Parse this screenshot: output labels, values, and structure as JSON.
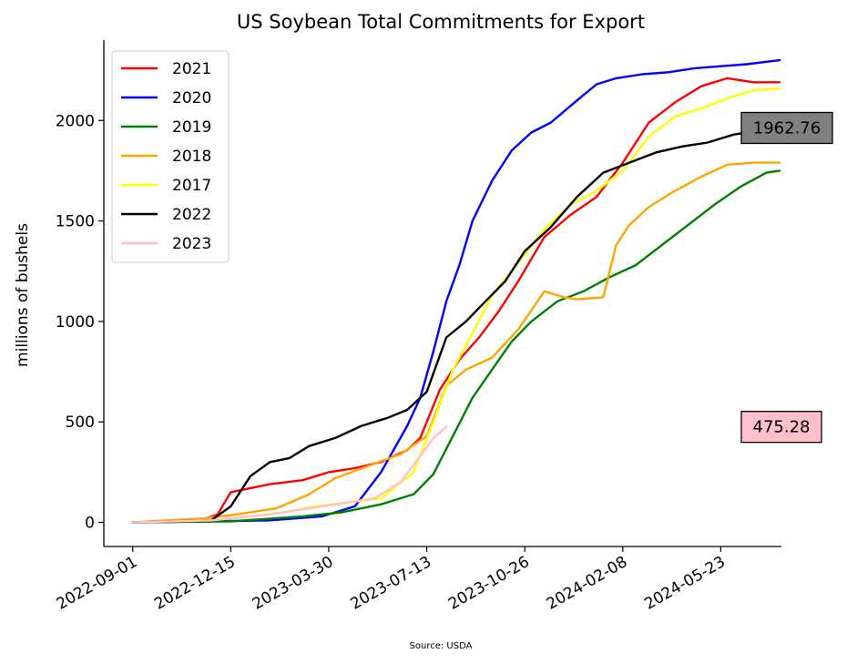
{
  "chart_data": {
    "type": "line",
    "title": "US Soybean Total Commitments for Export",
    "xlabel": "",
    "ylabel": "millions of bushels",
    "source": "Source: USDA",
    "x_axis": {
      "type": "date",
      "range": [
        "2022-08-01",
        "2024-07-27"
      ],
      "ticks": [
        "2022-09-01",
        "2022-12-15",
        "2023-03-30",
        "2023-07-13",
        "2023-10-26",
        "2024-02-08",
        "2024-05-23"
      ]
    },
    "y_axis": {
      "range": [
        -120,
        2400
      ],
      "ticks": [
        "0",
        "500",
        "1000",
        "1500",
        "2000"
      ]
    },
    "grid": false,
    "legend_position": "top-left",
    "series": [
      {
        "name": "2021",
        "color": "#ff0000",
        "x": [
          "2022-09-01",
          "2022-11-10",
          "2022-12-01",
          "2022-12-15",
          "2023-01-26",
          "2023-03-02",
          "2023-03-30",
          "2023-04-27",
          "2023-05-25",
          "2023-06-22",
          "2023-07-06",
          "2023-07-27",
          "2023-08-17",
          "2023-09-07",
          "2023-09-28",
          "2023-10-19",
          "2023-11-16",
          "2023-12-14",
          "2024-01-11",
          "2024-02-08",
          "2024-03-07",
          "2024-04-04",
          "2024-05-02",
          "2024-05-30",
          "2024-06-27",
          "2024-07-25"
        ],
        "y": [
          0,
          5,
          40,
          150,
          190,
          210,
          250,
          270,
          300,
          360,
          420,
          660,
          810,
          920,
          1050,
          1200,
          1420,
          1530,
          1620,
          1790,
          1990,
          2090,
          2170,
          2210,
          2190,
          2190
        ]
      },
      {
        "name": "2020",
        "color": "#0000ff",
        "x": [
          "2022-09-01",
          "2022-11-24",
          "2023-01-26",
          "2023-03-23",
          "2023-04-27",
          "2023-05-25",
          "2023-06-22",
          "2023-07-06",
          "2023-07-20",
          "2023-08-03",
          "2023-08-17",
          "2023-08-31",
          "2023-09-21",
          "2023-10-12",
          "2023-11-02",
          "2023-11-23",
          "2023-12-21",
          "2024-01-11",
          "2024-02-01",
          "2024-02-29",
          "2024-03-28",
          "2024-04-25",
          "2024-05-23",
          "2024-06-20",
          "2024-07-25"
        ],
        "y": [
          0,
          5,
          10,
          30,
          80,
          250,
          480,
          620,
          850,
          1100,
          1280,
          1500,
          1700,
          1850,
          1940,
          1990,
          2100,
          2180,
          2210,
          2230,
          2240,
          2260,
          2270,
          2280,
          2300
        ]
      },
      {
        "name": "2019",
        "color": "#008000",
        "x": [
          "2022-09-01",
          "2022-12-15",
          "2023-03-02",
          "2023-04-13",
          "2023-05-25",
          "2023-06-29",
          "2023-07-20",
          "2023-08-10",
          "2023-08-31",
          "2023-09-21",
          "2023-10-12",
          "2023-11-02",
          "2023-11-30",
          "2023-12-28",
          "2024-01-25",
          "2024-02-22",
          "2024-03-21",
          "2024-04-18",
          "2024-05-16",
          "2024-06-13",
          "2024-07-11",
          "2024-07-25"
        ],
        "y": [
          0,
          5,
          30,
          50,
          90,
          140,
          240,
          430,
          620,
          760,
          900,
          1000,
          1100,
          1150,
          1220,
          1280,
          1380,
          1480,
          1580,
          1670,
          1740,
          1750
        ]
      },
      {
        "name": "2018",
        "color": "#ffa500",
        "x": [
          "2022-09-01",
          "2022-11-17",
          "2022-12-22",
          "2023-02-02",
          "2023-03-09",
          "2023-04-06",
          "2023-05-11",
          "2023-06-15",
          "2023-07-13",
          "2023-08-03",
          "2023-08-24",
          "2023-09-21",
          "2023-10-19",
          "2023-11-16",
          "2023-12-07",
          "2023-12-21",
          "2024-01-18",
          "2024-02-01",
          "2024-02-15",
          "2024-03-07",
          "2024-04-04",
          "2024-05-02",
          "2024-05-30",
          "2024-06-27",
          "2024-07-25"
        ],
        "y": [
          0,
          20,
          40,
          70,
          140,
          220,
          280,
          340,
          430,
          680,
          760,
          820,
          960,
          1150,
          1120,
          1110,
          1120,
          1380,
          1480,
          1570,
          1650,
          1720,
          1780,
          1790,
          1790
        ]
      },
      {
        "name": "2017",
        "color": "#ffff00",
        "x": [
          "2022-09-01",
          "2022-11-24",
          "2023-01-05",
          "2023-02-09",
          "2023-03-16",
          "2023-04-20",
          "2023-05-25",
          "2023-06-29",
          "2023-07-20",
          "2023-08-10",
          "2023-08-31",
          "2023-09-21",
          "2023-10-19",
          "2023-11-16",
          "2023-12-14",
          "2024-01-11",
          "2024-02-08",
          "2024-03-07",
          "2024-04-04",
          "2024-05-02",
          "2024-05-30",
          "2024-06-27",
          "2024-07-25"
        ],
        "y": [
          0,
          10,
          30,
          50,
          80,
          100,
          120,
          250,
          500,
          760,
          940,
          1130,
          1290,
          1460,
          1580,
          1650,
          1750,
          1920,
          2020,
          2060,
          2110,
          2150,
          2160
        ]
      },
      {
        "name": "2022",
        "color": "#000000",
        "x": [
          "2022-09-01",
          "2022-11-24",
          "2022-12-15",
          "2023-01-05",
          "2023-01-26",
          "2023-02-16",
          "2023-03-09",
          "2023-04-06",
          "2023-05-04",
          "2023-06-01",
          "2023-06-22",
          "2023-07-13",
          "2023-08-03",
          "2023-08-24",
          "2023-09-14",
          "2023-10-05",
          "2023-10-26",
          "2023-11-23",
          "2023-12-21",
          "2024-01-18",
          "2024-02-15",
          "2024-03-14",
          "2024-04-11",
          "2024-05-09",
          "2024-06-06",
          "2024-07-04",
          "2024-07-25"
        ],
        "y": [
          0,
          10,
          80,
          230,
          300,
          320,
          380,
          420,
          480,
          520,
          560,
          650,
          920,
          1000,
          1100,
          1200,
          1350,
          1470,
          1620,
          1740,
          1790,
          1840,
          1870,
          1890,
          1930,
          1950,
          1962.76
        ]
      },
      {
        "name": "2023",
        "color": "#ffc0cb",
        "x": [
          "2022-09-01",
          "2022-11-24",
          "2023-01-26",
          "2023-03-23",
          "2023-05-18",
          "2023-06-15",
          "2023-07-06",
          "2023-07-20",
          "2023-08-03"
        ],
        "y": [
          0,
          10,
          40,
          80,
          120,
          200,
          330,
          420,
          475.28
        ]
      }
    ],
    "annotations": [
      {
        "series": "2022",
        "value": "1962.76",
        "bg": "#808080"
      },
      {
        "series": "2023",
        "value": "475.28",
        "bg": "#ffc0cb"
      }
    ]
  }
}
